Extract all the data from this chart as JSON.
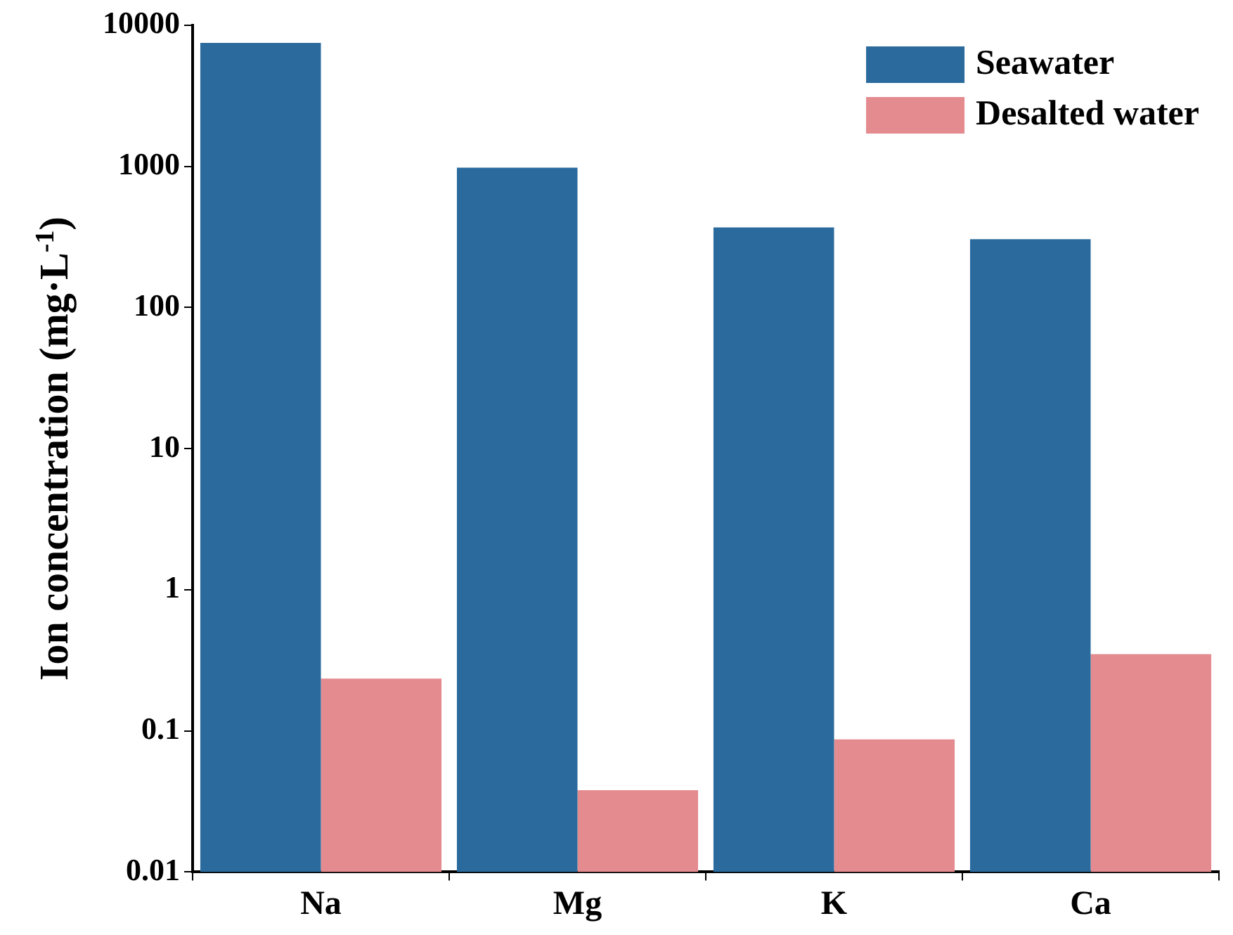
{
  "chart_data": {
    "type": "bar",
    "ylabel": "Ion concentration (mg·L$^{-1}$)",
    "categories": [
      "Na",
      "Mg",
      "K",
      "Ca"
    ],
    "series": [
      {
        "name": "Seawater",
        "color": "#2a6a9c",
        "values": [
          7500,
          980,
          370,
          305
        ]
      },
      {
        "name": "Desalted water",
        "color": "#e48b8f",
        "values": [
          0.235,
          0.038,
          0.087,
          0.35
        ]
      }
    ],
    "log": "y",
    "ylim": [
      0.01,
      10000
    ],
    "yticks": [
      0.01,
      0.1,
      1,
      10,
      100,
      1000,
      10000
    ],
    "grid": false,
    "legend": "top right"
  }
}
